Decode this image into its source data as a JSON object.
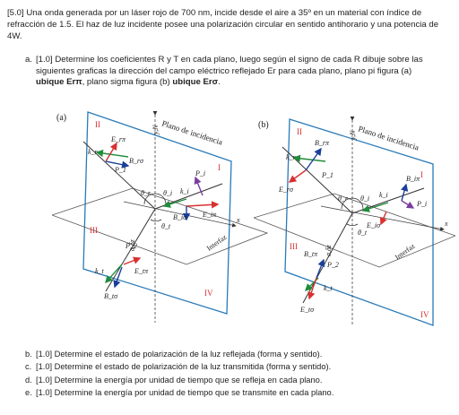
{
  "intro": "[5.0] Una onda generada por un láser rojo de 700 nm, incide desde el aire a 35º en un material con índice de refracción de 1.5. El haz de luz incidente posee una polarización circular en sentido antihorario y una potencia de 4W.",
  "item_a": {
    "num": "a.",
    "text_1": "[1.0] Determine los coeficientes R y T en cada plano, luego según el signo de cada R dibuje sobre las siguientes graficas la dirección del campo eléctrico reflejado Er para cada plano, plano pi figura (a) ",
    "bold_1": "ubique Erπ",
    "text_2": ", plano sigma figura (b) ",
    "bold_2": "ubique Erσ",
    "text_3": "."
  },
  "figures": {
    "a": {
      "tag": "(a)",
      "plane_label": "Plano de incidencia",
      "interface_label": "Interfaz",
      "quadrants": [
        "II",
        "I",
        "III",
        "IV"
      ],
      "labels": [
        "E_rπ",
        "k_r",
        "B_rσ",
        "P_1",
        "θ_r",
        "θ_i",
        "k_i",
        "P_i",
        "B_iσ",
        "E_iπ",
        "θ_t",
        "P_2",
        "k_t",
        "E_tπ",
        "B_tσ",
        "x",
        "y,N",
        "σ,δz"
      ]
    },
    "b": {
      "tag": "(b)",
      "plane_label": "Plano de incidencia",
      "interface_label": "Interfaz",
      "quadrants": [
        "II",
        "I",
        "III",
        "IV"
      ],
      "labels": [
        "B_rπ",
        "k_r",
        "E_rσ",
        "P_1",
        "θ_r",
        "θ_i",
        "k_i",
        "B_iπ",
        "P_i",
        "E_iσ",
        "θ_t",
        "B_tπ",
        "P_2",
        "k_t",
        "E_tσ",
        "x",
        "y,N",
        "σ,δz"
      ]
    }
  },
  "items": [
    {
      "num": "b.",
      "text": "[1.0] Determine el estado de polarización de la luz reflejada (forma y sentido)."
    },
    {
      "num": "c.",
      "text": "[1.0] Determine el estado de polarización de la luz transmitida (forma y sentido)."
    },
    {
      "num": "d.",
      "text": "[1.0] Determine la energía por unidad de tiempo que se refleja en cada plano."
    },
    {
      "num": "e.",
      "text": "[1.0] Determine la energía por unidad de tiempo que se transmite en cada plano."
    }
  ],
  "colors": {
    "plane": "#2a7ab8",
    "e_field": "#d93030",
    "b_field": "#1a3f9a",
    "wave_vector": "#1f8c3a",
    "pointing": "#7a3ea0"
  }
}
